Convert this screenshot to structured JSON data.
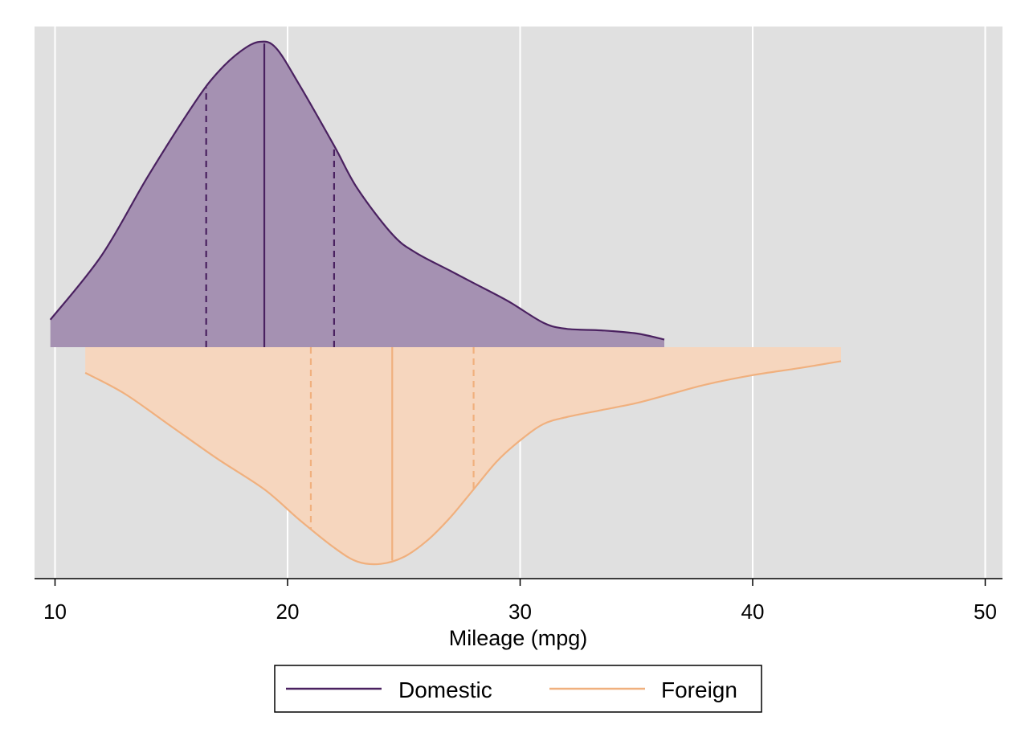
{
  "chart_data": {
    "type": "area",
    "subtype": "split-violin (half density plots)",
    "xlabel": "Mileage (mpg)",
    "xlim": [
      9.2,
      50.8
    ],
    "xticks": [
      10,
      20,
      30,
      40,
      50
    ],
    "grid": "vertical",
    "legend": {
      "position": "bottom",
      "entries": [
        "Domestic",
        "Foreign"
      ]
    },
    "series": [
      {
        "name": "Domestic",
        "direction": "up",
        "line_color": "#4a2160",
        "fill_color": "#a591b2",
        "density": [
          [
            9.8,
            0.09
          ],
          [
            12.0,
            0.3
          ],
          [
            14.0,
            0.56
          ],
          [
            16.0,
            0.8
          ],
          [
            17.0,
            0.9
          ],
          [
            18.0,
            0.97
          ],
          [
            18.8,
            1.0
          ],
          [
            19.5,
            0.98
          ],
          [
            20.5,
            0.86
          ],
          [
            22.0,
            0.66
          ],
          [
            23.0,
            0.52
          ],
          [
            24.5,
            0.37
          ],
          [
            25.5,
            0.31
          ],
          [
            27.0,
            0.25
          ],
          [
            28.0,
            0.21
          ],
          [
            29.5,
            0.15
          ],
          [
            31.0,
            0.08
          ],
          [
            32.0,
            0.06
          ],
          [
            33.5,
            0.055
          ],
          [
            35.0,
            0.045
          ],
          [
            36.2,
            0.025
          ]
        ],
        "quartiles": {
          "q1": 16.5,
          "median": 19.0,
          "q3": 22.0
        }
      },
      {
        "name": "Foreign",
        "direction": "down",
        "line_color": "#f0b07e",
        "fill_color": "#f6d6be",
        "density": [
          [
            11.3,
            0.11
          ],
          [
            13.0,
            0.2
          ],
          [
            15.0,
            0.34
          ],
          [
            17.0,
            0.48
          ],
          [
            19.0,
            0.61
          ],
          [
            20.5,
            0.74
          ],
          [
            22.0,
            0.86
          ],
          [
            23.0,
            0.92
          ],
          [
            24.0,
            0.93
          ],
          [
            25.0,
            0.9
          ],
          [
            26.0,
            0.83
          ],
          [
            27.0,
            0.73
          ],
          [
            28.0,
            0.61
          ],
          [
            29.0,
            0.49
          ],
          [
            30.0,
            0.4
          ],
          [
            31.0,
            0.33
          ],
          [
            32.0,
            0.3
          ],
          [
            33.5,
            0.27
          ],
          [
            35.0,
            0.24
          ],
          [
            36.5,
            0.2
          ],
          [
            38.0,
            0.16
          ],
          [
            40.0,
            0.12
          ],
          [
            42.0,
            0.09
          ],
          [
            43.8,
            0.06
          ]
        ],
        "quartiles": {
          "q1": 21.0,
          "median": 24.5,
          "q3": 28.0
        }
      }
    ]
  }
}
